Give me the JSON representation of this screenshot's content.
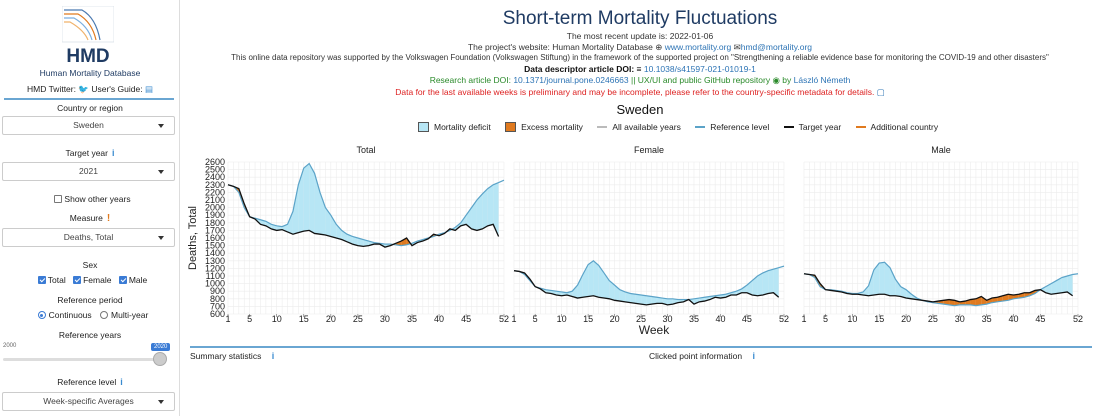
{
  "sidebar": {
    "logo_text": "HMD",
    "org_name": "Human Mortality Database",
    "twitter_label": "HMD Twitter:",
    "guide_label": "User's Guide:",
    "country_label": "Country or region",
    "country_value": "Sweden",
    "target_year_label": "Target year",
    "target_year_value": "2021",
    "show_other_years_label": "Show other years",
    "measure_label": "Measure",
    "measure_value": "Deaths, Total",
    "sex_label": "Sex",
    "sex_options": [
      "Total",
      "Female",
      "Male"
    ],
    "reference_period_label": "Reference period",
    "reference_period_options": [
      "Continuous",
      "Multi-year"
    ],
    "reference_years_label": "Reference years",
    "slider_min": "2000",
    "slider_max": "2020",
    "reference_level_label": "Reference level",
    "reference_level_value": "Week-specific Averages"
  },
  "header": {
    "title": "Short-term Mortality Fluctuations",
    "update_line": "The most recent update is: 2022-01-06",
    "website_prefix": "The project's website: Human Mortality Database",
    "website_link": "www.mortality.org",
    "email_link": "hmd@mortality.org",
    "support_line": "This online data repository was supported by the Volkswagen Foundation (Volkswagen Stiftung) in the framework of the supported project on \"Strengthening a reliable evidence base for monitoring the COVID-19 and other disasters\"",
    "descriptor_label": "Data descriptor article DOI:",
    "descriptor_doi": "10.1038/s41597-021-01019-1",
    "research_label": "Research article DOI:",
    "research_doi": "10.1371/journal.pone.0246663",
    "github_text": "|| UX/UI and public GitHub repository",
    "github_by": "by",
    "author": "László Németh",
    "warning": "Data for the last available weeks is preliminary and may be incomplete, please refer to the country-specific metadata for details."
  },
  "chart_area": {
    "country": "Sweden",
    "legend": [
      "Mortality deficit",
      "Excess mortality",
      "All available years",
      "Reference level",
      "Target year",
      "Additional country"
    ],
    "colors": {
      "deficit": "#b7e6f5",
      "excess": "#e07a1f",
      "reference": "#5ba3c8",
      "target": "#111111",
      "allyears": "#bbbbbb",
      "additional": "#e07a1f"
    },
    "ylabel": "Deaths, Total",
    "xlabel": "Week"
  },
  "footer": {
    "summary_label": "Summary statistics",
    "clicked_label": "Clicked point information"
  },
  "chart_data": [
    {
      "type": "area",
      "title": "Total",
      "x_ticks": [
        1,
        5,
        10,
        15,
        20,
        25,
        30,
        35,
        40,
        45,
        52
      ],
      "ylim": [
        600,
        2600
      ],
      "y_ticks": [
        600,
        700,
        800,
        900,
        1000,
        1100,
        1200,
        1300,
        1400,
        1500,
        1600,
        1700,
        1800,
        1900,
        2000,
        2100,
        2200,
        2300,
        2400,
        2500,
        2600
      ],
      "series": [
        {
          "name": "Reference level",
          "values": [
            2300,
            2280,
            2200,
            2000,
            1880,
            1860,
            1840,
            1820,
            1780,
            1760,
            1750,
            1780,
            1950,
            2300,
            2520,
            2580,
            2450,
            2200,
            2000,
            1900,
            1780,
            1700,
            1650,
            1620,
            1600,
            1580,
            1560,
            1540,
            1530,
            1520,
            1520,
            1510,
            1500,
            1510,
            1530,
            1560,
            1580,
            1600,
            1620,
            1650,
            1670,
            1700,
            1740,
            1800,
            1900,
            2000,
            2100,
            2180,
            2250,
            2300,
            2330,
            2360
          ]
        },
        {
          "name": "Target year",
          "values": [
            2300,
            2280,
            2250,
            2050,
            1880,
            1850,
            1780,
            1760,
            1720,
            1700,
            1710,
            1680,
            1650,
            1670,
            1690,
            1700,
            1660,
            1650,
            1640,
            1620,
            1600,
            1580,
            1550,
            1520,
            1500,
            1490,
            1500,
            1520,
            1520,
            1480,
            1500,
            1530,
            1560,
            1600,
            1500,
            1540,
            1560,
            1590,
            1650,
            1630,
            1660,
            1720,
            1700,
            1760,
            1780,
            1720,
            1700,
            1720,
            1760,
            1780,
            1620,
            null
          ]
        }
      ]
    },
    {
      "type": "area",
      "title": "Female",
      "x_ticks": [
        1,
        5,
        10,
        15,
        20,
        25,
        30,
        35,
        40,
        45,
        52
      ],
      "series": [
        {
          "name": "Reference level",
          "values": [
            1170,
            1160,
            1120,
            1040,
            960,
            940,
            920,
            910,
            900,
            890,
            880,
            900,
            980,
            1120,
            1250,
            1300,
            1240,
            1140,
            1040,
            980,
            920,
            890,
            870,
            860,
            850,
            840,
            830,
            820,
            810,
            800,
            800,
            790,
            790,
            790,
            800,
            810,
            820,
            830,
            840,
            850,
            860,
            880,
            900,
            930,
            980,
            1040,
            1100,
            1140,
            1170,
            1190,
            1210,
            1230
          ]
        },
        {
          "name": "Target year",
          "values": [
            1170,
            1160,
            1140,
            1060,
            960,
            930,
            880,
            870,
            850,
            840,
            850,
            830,
            810,
            820,
            830,
            840,
            820,
            810,
            800,
            780,
            770,
            760,
            750,
            740,
            730,
            720,
            730,
            740,
            740,
            720,
            730,
            750,
            760,
            790,
            730,
            760,
            770,
            790,
            820,
            810,
            820,
            850,
            850,
            880,
            880,
            850,
            840,
            850,
            870,
            880,
            820,
            null
          ]
        }
      ]
    },
    {
      "type": "area",
      "title": "Male",
      "x_ticks": [
        1,
        5,
        10,
        15,
        20,
        25,
        30,
        35,
        40,
        45,
        52
      ],
      "series": [
        {
          "name": "Reference level",
          "values": [
            1130,
            1120,
            1080,
            960,
            920,
            920,
            910,
            900,
            880,
            870,
            870,
            890,
            970,
            1180,
            1270,
            1280,
            1210,
            1060,
            960,
            920,
            860,
            810,
            780,
            760,
            750,
            740,
            730,
            720,
            710,
            720,
            720,
            720,
            710,
            720,
            730,
            750,
            760,
            770,
            780,
            800,
            810,
            820,
            840,
            870,
            920,
            960,
            1000,
            1040,
            1080,
            1100,
            1120,
            1130
          ]
        },
        {
          "name": "Target year",
          "values": [
            1130,
            1120,
            1110,
            1000,
            920,
            910,
            900,
            890,
            870,
            860,
            860,
            850,
            840,
            850,
            860,
            860,
            840,
            840,
            830,
            810,
            800,
            790,
            780,
            770,
            760,
            770,
            780,
            790,
            780,
            760,
            770,
            790,
            800,
            830,
            780,
            810,
            820,
            840,
            860,
            850,
            860,
            880,
            880,
            910,
            920,
            880,
            860,
            870,
            880,
            890,
            840,
            null
          ]
        }
      ]
    }
  ]
}
